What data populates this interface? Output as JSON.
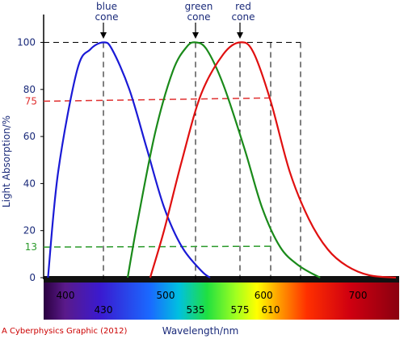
{
  "chart_data": {
    "type": "line",
    "ylabel": "Light Absorption/%",
    "xlabel": "Wavelength/nm",
    "credit": "A Cyberphysics Graphic (2012)",
    "xlim": [
      370,
      730
    ],
    "ylim": [
      0,
      100
    ],
    "x_ticks": [
      "400",
      "500",
      "600",
      "700"
    ],
    "y_ticks": [
      "0",
      "20",
      "40",
      "60",
      "80",
      "100"
    ],
    "marked_wavelengths": [
      "430",
      "535",
      "575",
      "610"
    ],
    "marked_levels": [
      "75",
      "13"
    ],
    "series": [
      {
        "name": "blue cone",
        "color": "#1a1ad6",
        "x": [
          372,
          390,
          410,
          420,
          430,
          440,
          460,
          480,
          500,
          520,
          540,
          548
        ],
        "y": [
          0,
          45,
          88,
          97,
          100,
          97,
          80,
          55,
          30,
          13,
          3,
          0
        ]
      },
      {
        "name": "green cone",
        "color": "#1a8a1a",
        "x": [
          458,
          470,
          490,
          510,
          525,
          535,
          545,
          560,
          580,
          600,
          620,
          640,
          662
        ],
        "y": [
          0,
          25,
          62,
          88,
          98,
          100,
          97,
          82,
          55,
          30,
          13,
          5,
          0
        ]
      },
      {
        "name": "red cone",
        "color": "#e01010",
        "x": [
          484,
          500,
          520,
          540,
          560,
          575,
          590,
          610,
          630,
          650,
          670,
          690,
          710,
          730
        ],
        "y": [
          0,
          20,
          50,
          78,
          95,
          100,
          96,
          75,
          45,
          25,
          12,
          5,
          1,
          0
        ]
      }
    ],
    "cone_labels": [
      {
        "line1": "blue",
        "line2": "cone"
      },
      {
        "line1": "green",
        "line2": "cone"
      },
      {
        "line1": "red",
        "line2": "cone"
      }
    ]
  }
}
